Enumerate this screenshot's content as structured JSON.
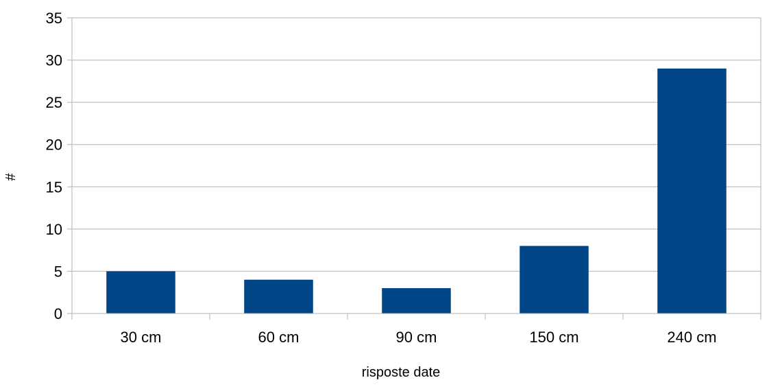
{
  "chart_data": {
    "type": "bar",
    "title": "",
    "xlabel": "risposte date",
    "ylabel": "#",
    "categories": [
      "30 cm",
      "60 cm",
      "90 cm",
      "150 cm",
      "240 cm"
    ],
    "values": [
      5,
      4,
      3,
      8,
      29
    ],
    "ylim": [
      0,
      35
    ],
    "yticks": [
      0,
      5,
      10,
      15,
      20,
      25,
      30,
      35
    ],
    "grid": true,
    "legend": "none",
    "colors": {
      "bar": "#004586",
      "grid": "#b3b3b3",
      "axis": "#b3b3b3"
    }
  }
}
